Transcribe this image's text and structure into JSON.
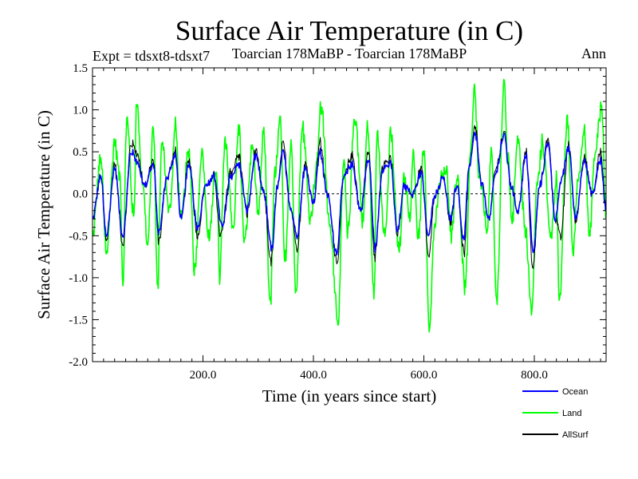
{
  "chart_data": {
    "type": "line",
    "title": "Surface Air Temperature (in C)",
    "subtitle_left": "Expt = tdsxt8-tdsxt7",
    "subtitle_center": "Toarcian 178MaBP - Toarcian 178MaBP",
    "subtitle_right": "Ann",
    "xlabel": "Time (in years since start)",
    "ylabel": "Surface Air Temperature (in C)",
    "xlim": [
      0,
      930
    ],
    "ylim": [
      -2.0,
      1.5
    ],
    "x_ticks": [
      200,
      400,
      600,
      800
    ],
    "x_tick_labels": [
      "200.0",
      "400.0",
      "600.0",
      "800.0"
    ],
    "y_ticks": [
      -2.0,
      -1.5,
      -1.0,
      -0.5,
      0.0,
      0.5,
      1.0,
      1.5
    ],
    "y_tick_labels": [
      "-2.0",
      "-1.5",
      "-1.0",
      "-0.5",
      "0.0",
      "0.5",
      "1.0",
      "1.5"
    ],
    "x_minor_step": 20,
    "y_minor_step": 0.1,
    "zero_line": true,
    "n_points": 930,
    "series": [
      {
        "name": "Land",
        "color": "#00ff00",
        "keypoints": [
          [
            0,
            -0.5
          ],
          [
            15,
            0.4
          ],
          [
            25,
            -0.7
          ],
          [
            40,
            0.6
          ],
          [
            50,
            0.2
          ],
          [
            55,
            -1.07
          ],
          [
            62,
            0.9
          ],
          [
            75,
            -0.3
          ],
          [
            80,
            1.15
          ],
          [
            90,
            0.2
          ],
          [
            100,
            -0.6
          ],
          [
            110,
            0.8
          ],
          [
            118,
            -1.1
          ],
          [
            125,
            0.6
          ],
          [
            140,
            -0.2
          ],
          [
            150,
            0.8
          ],
          [
            160,
            -0.3
          ],
          [
            175,
            0.5
          ],
          [
            185,
            -0.9
          ],
          [
            198,
            0.5
          ],
          [
            210,
            -0.5
          ],
          [
            225,
            0.3
          ],
          [
            230,
            -1.0
          ],
          [
            240,
            0.6
          ],
          [
            255,
            -0.4
          ],
          [
            265,
            0.8
          ],
          [
            275,
            -0.6
          ],
          [
            290,
            0.6
          ],
          [
            300,
            -0.3
          ],
          [
            310,
            0.7
          ],
          [
            322,
            -1.3
          ],
          [
            330,
            0.2
          ],
          [
            340,
            0.9
          ],
          [
            348,
            -0.8
          ],
          [
            360,
            0.6
          ],
          [
            368,
            -1.2
          ],
          [
            380,
            0.8
          ],
          [
            395,
            -0.3
          ],
          [
            405,
            0.3
          ],
          [
            414,
            1.05
          ],
          [
            430,
            -0.4
          ],
          [
            445,
            -1.5
          ],
          [
            455,
            0.4
          ],
          [
            462,
            -0.5
          ],
          [
            475,
            0.9
          ],
          [
            490,
            -0.3
          ],
          [
            498,
            0.8
          ],
          [
            510,
            -1.2
          ],
          [
            515,
            0.7
          ],
          [
            530,
            -0.5
          ],
          [
            540,
            0.7
          ],
          [
            555,
            -0.7
          ],
          [
            565,
            0.2
          ],
          [
            575,
            -0.3
          ],
          [
            580,
            0.5
          ],
          [
            590,
            -0.5
          ],
          [
            600,
            0.5
          ],
          [
            610,
            -1.63
          ],
          [
            620,
            -0.3
          ],
          [
            630,
            0.2
          ],
          [
            640,
            0.3
          ],
          [
            650,
            -0.5
          ],
          [
            660,
            0.2
          ],
          [
            675,
            -1.1
          ],
          [
            685,
            0.5
          ],
          [
            692,
            1.25
          ],
          [
            700,
            0.2
          ],
          [
            715,
            -0.4
          ],
          [
            722,
            0.5
          ],
          [
            732,
            -1.27
          ],
          [
            745,
            1.32
          ],
          [
            752,
            0.4
          ],
          [
            760,
            -0.3
          ],
          [
            770,
            0.7
          ],
          [
            785,
            -0.5
          ],
          [
            795,
            -1.45
          ],
          [
            805,
            0.1
          ],
          [
            815,
            0.6
          ],
          [
            830,
            -0.5
          ],
          [
            840,
            0.2
          ],
          [
            845,
            -1.3
          ],
          [
            860,
            0.9
          ],
          [
            870,
            -0.7
          ],
          [
            880,
            0.2
          ],
          [
            890,
            0.8
          ],
          [
            900,
            -0.5
          ],
          [
            910,
            0.5
          ],
          [
            922,
            1.05
          ],
          [
            930,
            -0.3
          ]
        ]
      },
      {
        "name": "Ocean",
        "color": "#0000ff",
        "keypoints": [
          [
            0,
            -0.3
          ],
          [
            15,
            0.2
          ],
          [
            25,
            -0.5
          ],
          [
            40,
            0.3
          ],
          [
            55,
            -0.5
          ],
          [
            70,
            0.5
          ],
          [
            80,
            0.4
          ],
          [
            95,
            0.1
          ],
          [
            110,
            0.35
          ],
          [
            120,
            -0.45
          ],
          [
            135,
            0.2
          ],
          [
            150,
            0.45
          ],
          [
            160,
            -0.3
          ],
          [
            175,
            0.35
          ],
          [
            190,
            -0.4
          ],
          [
            205,
            0.1
          ],
          [
            220,
            0.2
          ],
          [
            235,
            -0.4
          ],
          [
            250,
            0.2
          ],
          [
            265,
            0.35
          ],
          [
            280,
            -0.2
          ],
          [
            295,
            0.45
          ],
          [
            310,
            0.0
          ],
          [
            325,
            -0.65
          ],
          [
            335,
            0.1
          ],
          [
            345,
            0.5
          ],
          [
            360,
            -0.2
          ],
          [
            370,
            -0.5
          ],
          [
            385,
            0.3
          ],
          [
            400,
            -0.1
          ],
          [
            412,
            0.5
          ],
          [
            425,
            0.0
          ],
          [
            442,
            -0.7
          ],
          [
            455,
            0.2
          ],
          [
            470,
            0.35
          ],
          [
            485,
            -0.2
          ],
          [
            500,
            0.4
          ],
          [
            512,
            -0.65
          ],
          [
            525,
            0.3
          ],
          [
            540,
            0.35
          ],
          [
            552,
            -0.45
          ],
          [
            565,
            0.1
          ],
          [
            580,
            0.0
          ],
          [
            595,
            0.25
          ],
          [
            608,
            -0.5
          ],
          [
            620,
            0.0
          ],
          [
            635,
            0.2
          ],
          [
            648,
            -0.3
          ],
          [
            660,
            0.1
          ],
          [
            672,
            -0.55
          ],
          [
            682,
            0.3
          ],
          [
            693,
            0.72
          ],
          [
            705,
            0.1
          ],
          [
            718,
            -0.3
          ],
          [
            730,
            0.25
          ],
          [
            745,
            0.7
          ],
          [
            758,
            0.1
          ],
          [
            770,
            -0.2
          ],
          [
            785,
            0.45
          ],
          [
            798,
            -0.7
          ],
          [
            810,
            0.1
          ],
          [
            825,
            0.6
          ],
          [
            838,
            -0.3
          ],
          [
            850,
            0.2
          ],
          [
            862,
            0.55
          ],
          [
            875,
            -0.3
          ],
          [
            890,
            0.4
          ],
          [
            905,
            0.0
          ],
          [
            920,
            0.4
          ],
          [
            930,
            -0.2
          ]
        ]
      },
      {
        "name": "AllSurf",
        "color": "#000000",
        "keypoints": [
          [
            0,
            -0.3
          ],
          [
            15,
            0.2
          ],
          [
            25,
            -0.55
          ],
          [
            40,
            0.35
          ],
          [
            55,
            -0.6
          ],
          [
            70,
            0.6
          ],
          [
            80,
            0.5
          ],
          [
            95,
            0.1
          ],
          [
            110,
            0.4
          ],
          [
            120,
            -0.55
          ],
          [
            135,
            0.2
          ],
          [
            150,
            0.5
          ],
          [
            160,
            -0.3
          ],
          [
            175,
            0.4
          ],
          [
            190,
            -0.5
          ],
          [
            205,
            0.1
          ],
          [
            220,
            0.2
          ],
          [
            232,
            -0.5
          ],
          [
            250,
            0.25
          ],
          [
            265,
            0.45
          ],
          [
            280,
            -0.25
          ],
          [
            295,
            0.5
          ],
          [
            310,
            0.0
          ],
          [
            323,
            -0.8
          ],
          [
            335,
            0.1
          ],
          [
            345,
            0.6
          ],
          [
            360,
            -0.2
          ],
          [
            370,
            -0.65
          ],
          [
            385,
            0.35
          ],
          [
            400,
            -0.1
          ],
          [
            412,
            0.62
          ],
          [
            425,
            0.0
          ],
          [
            443,
            -0.8
          ],
          [
            455,
            0.2
          ],
          [
            470,
            0.45
          ],
          [
            485,
            -0.2
          ],
          [
            500,
            0.5
          ],
          [
            511,
            -0.75
          ],
          [
            525,
            0.35
          ],
          [
            540,
            0.4
          ],
          [
            552,
            -0.5
          ],
          [
            565,
            0.1
          ],
          [
            580,
            0.0
          ],
          [
            595,
            0.3
          ],
          [
            609,
            -0.75
          ],
          [
            620,
            0.0
          ],
          [
            635,
            0.2
          ],
          [
            648,
            -0.35
          ],
          [
            660,
            0.1
          ],
          [
            673,
            -0.7
          ],
          [
            682,
            0.3
          ],
          [
            693,
            0.8
          ],
          [
            705,
            0.1
          ],
          [
            718,
            -0.3
          ],
          [
            730,
            0.3
          ],
          [
            745,
            0.72
          ],
          [
            758,
            0.1
          ],
          [
            770,
            -0.2
          ],
          [
            785,
            0.5
          ],
          [
            797,
            -0.9
          ],
          [
            810,
            0.1
          ],
          [
            825,
            0.65
          ],
          [
            838,
            -0.3
          ],
          [
            848,
            -0.5
          ],
          [
            862,
            0.6
          ],
          [
            875,
            -0.35
          ],
          [
            890,
            0.45
          ],
          [
            905,
            0.0
          ],
          [
            920,
            0.5
          ],
          [
            930,
            -0.2
          ]
        ]
      }
    ],
    "legend": [
      {
        "label": "Ocean",
        "color": "#0000ff"
      },
      {
        "label": "Land",
        "color": "#00ff00"
      },
      {
        "label": "AllSurf",
        "color": "#000000"
      }
    ],
    "legend_position": "bottom-right, below plot"
  }
}
